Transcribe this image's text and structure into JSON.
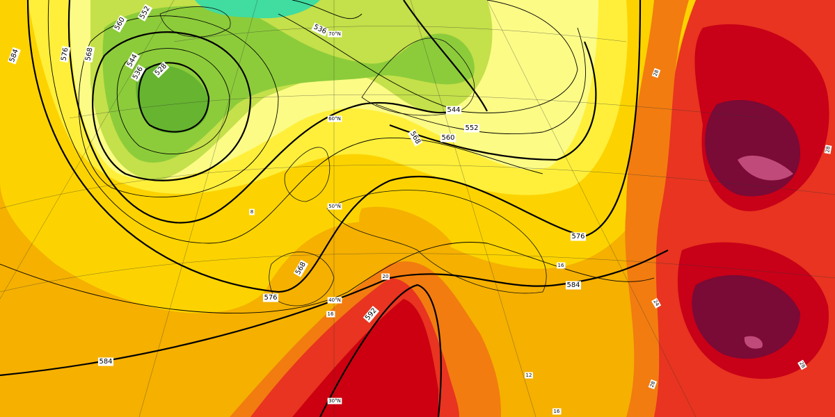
{
  "contour_labels": [
    "560",
    "552",
    "544",
    "536",
    "528",
    "568",
    "576",
    "584",
    "536",
    "544",
    "552",
    "560",
    "568",
    "576",
    "584",
    "576",
    "568",
    "592",
    "584"
  ],
  "latitude_labels": [
    "70°N",
    "60°N",
    "50°N",
    "40°N",
    "30°N"
  ],
  "temperature_labels": [
    "16",
    "20",
    "12",
    "16",
    "24",
    "28",
    "28",
    "28",
    "28",
    "8",
    "16"
  ]
}
